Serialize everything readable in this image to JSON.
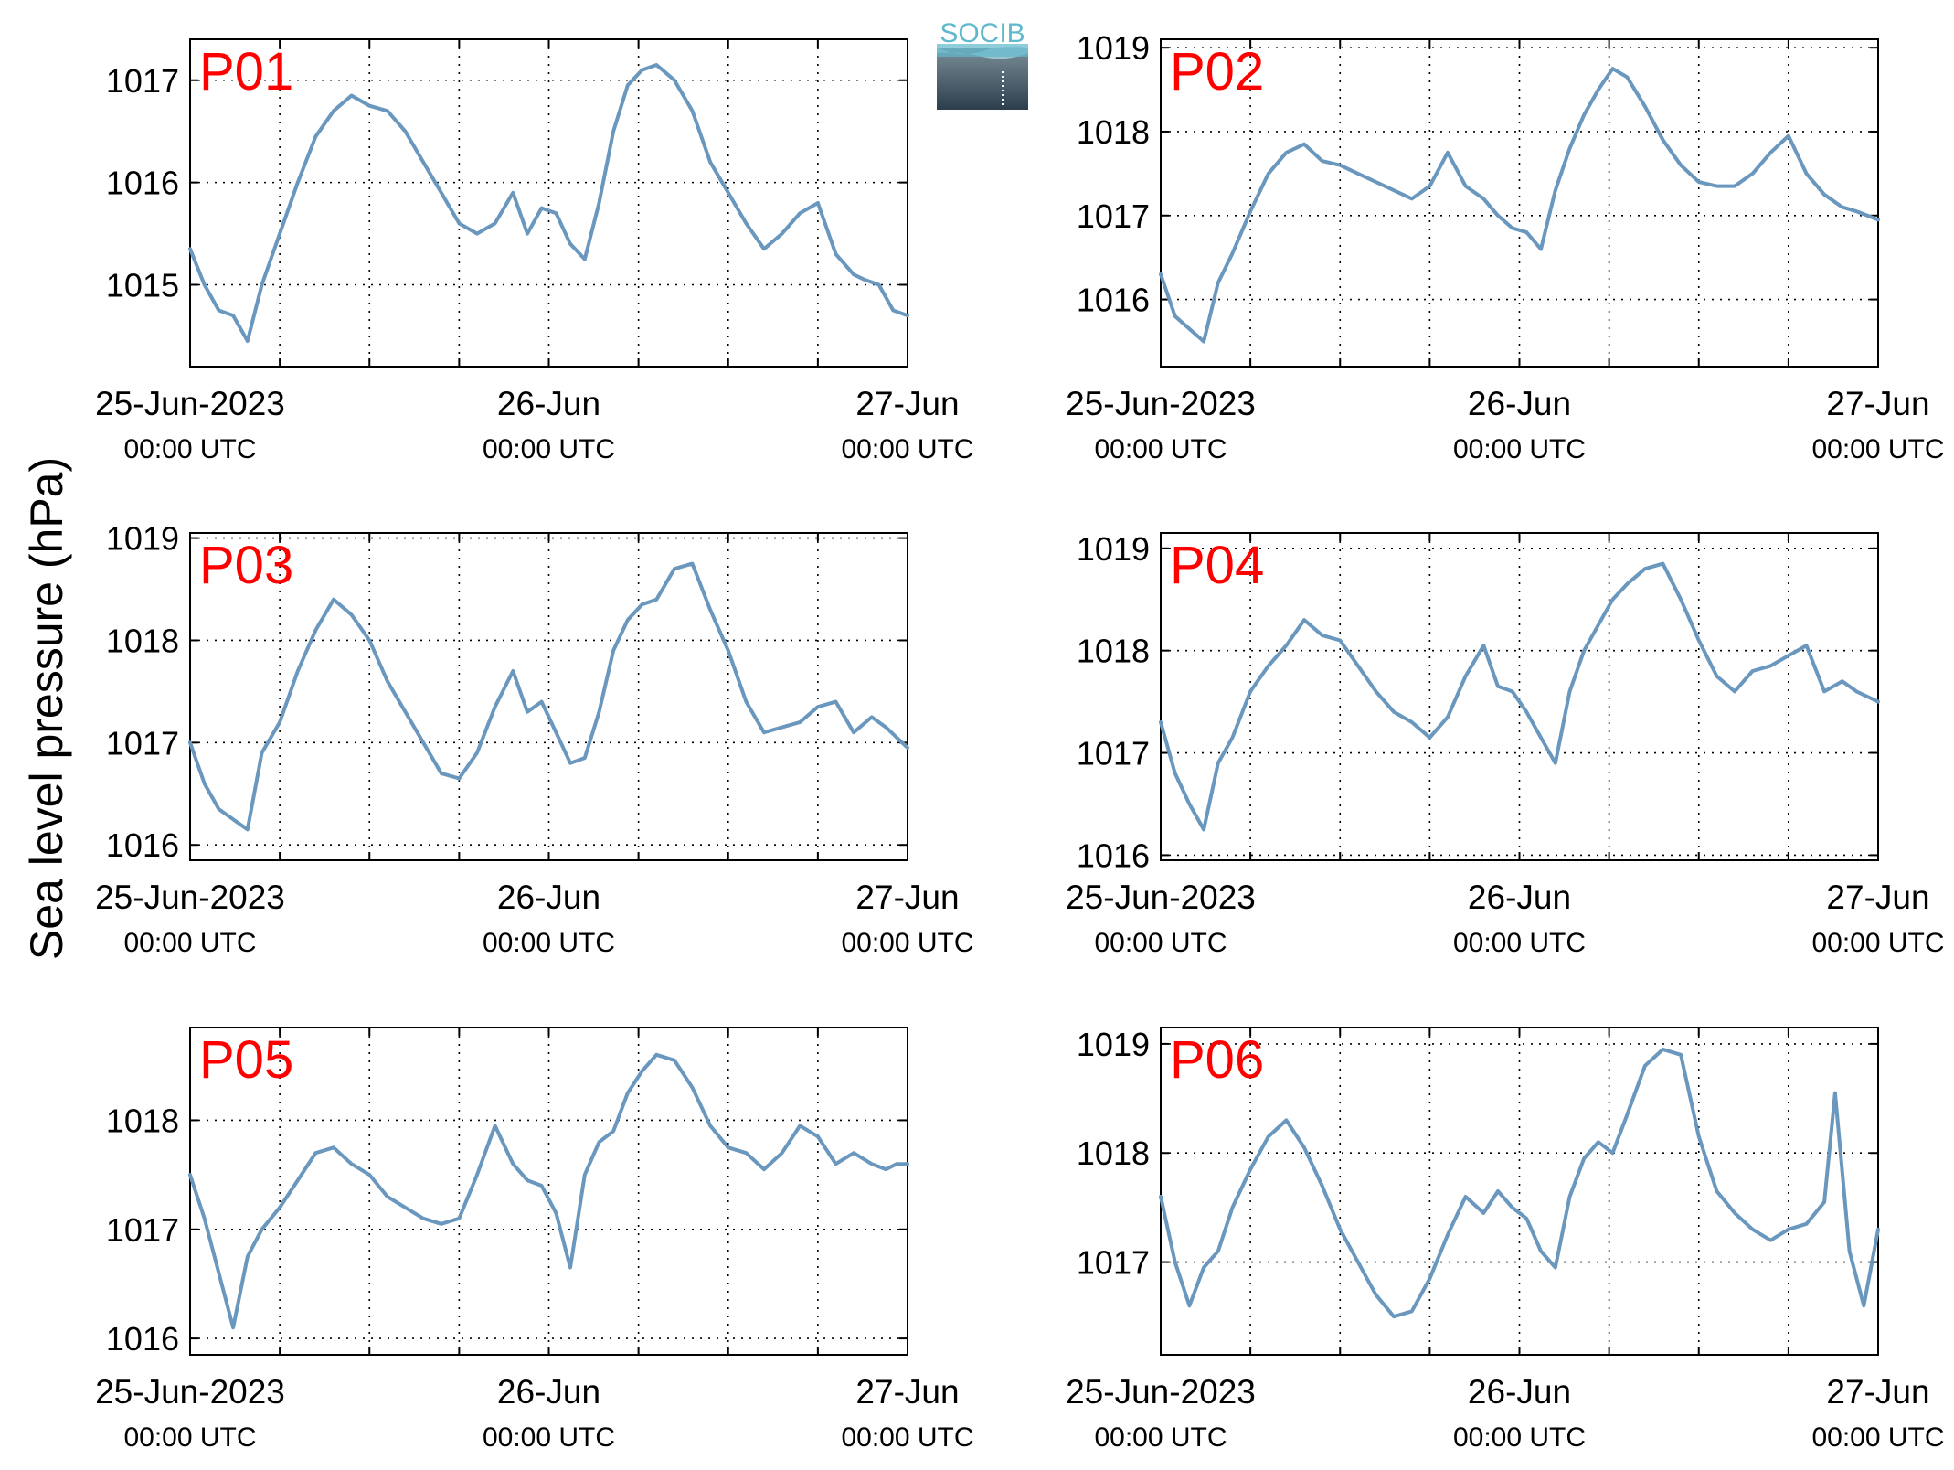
{
  "ylabel": "Sea level pressure (hPa)",
  "logo": {
    "text": "SOCIB"
  },
  "colors": {
    "line": "#6a97bd",
    "label": "#ff0000",
    "grid": "#000000",
    "logo_top": "#5fb8cc",
    "logo_bottom": "#2c3e4c"
  },
  "chart_data": [
    {
      "type": "line",
      "label": "P01",
      "ylim": [
        1014.2,
        1017.4
      ],
      "yticks": [
        1015,
        1016,
        1017
      ],
      "x": [
        0,
        0.04,
        0.08,
        0.12,
        0.16,
        0.2,
        0.25,
        0.3,
        0.35,
        0.4,
        0.45,
        0.5,
        0.55,
        0.6,
        0.65,
        0.7,
        0.75,
        0.8,
        0.85,
        0.9,
        0.94,
        0.98,
        1.02,
        1.06,
        1.1,
        1.14,
        1.18,
        1.22,
        1.26,
        1.3,
        1.35,
        1.4,
        1.45,
        1.5,
        1.55,
        1.6,
        1.65,
        1.7,
        1.75,
        1.8,
        1.85,
        1.88,
        1.92,
        1.96,
        2.0
      ],
      "y": [
        1015.35,
        1015.0,
        1014.75,
        1014.7,
        1014.45,
        1015.0,
        1015.5,
        1016.0,
        1016.45,
        1016.7,
        1016.85,
        1016.75,
        1016.7,
        1016.5,
        1016.2,
        1015.9,
        1015.6,
        1015.5,
        1015.6,
        1015.9,
        1015.5,
        1015.75,
        1015.7,
        1015.4,
        1015.25,
        1015.8,
        1016.5,
        1016.95,
        1017.1,
        1017.15,
        1017.0,
        1016.7,
        1016.2,
        1015.9,
        1015.6,
        1015.35,
        1015.5,
        1015.7,
        1015.8,
        1015.3,
        1015.1,
        1015.05,
        1015.0,
        1014.75,
        1014.7
      ]
    },
    {
      "type": "line",
      "label": "P02",
      "ylim": [
        1015.2,
        1019.1
      ],
      "yticks": [
        1016,
        1017,
        1018,
        1019
      ],
      "x": [
        0,
        0.04,
        0.08,
        0.12,
        0.16,
        0.2,
        0.25,
        0.3,
        0.35,
        0.4,
        0.45,
        0.5,
        0.55,
        0.6,
        0.65,
        0.7,
        0.75,
        0.8,
        0.85,
        0.9,
        0.94,
        0.98,
        1.02,
        1.06,
        1.1,
        1.14,
        1.18,
        1.22,
        1.26,
        1.3,
        1.35,
        1.4,
        1.45,
        1.5,
        1.55,
        1.6,
        1.65,
        1.7,
        1.75,
        1.8,
        1.85,
        1.9,
        1.94,
        1.97,
        2.0
      ],
      "y": [
        1016.3,
        1015.8,
        1015.65,
        1015.5,
        1016.2,
        1016.55,
        1017.05,
        1017.5,
        1017.75,
        1017.85,
        1017.65,
        1017.6,
        1017.5,
        1017.4,
        1017.3,
        1017.2,
        1017.35,
        1017.75,
        1017.35,
        1017.2,
        1017.0,
        1016.85,
        1016.8,
        1016.6,
        1017.3,
        1017.8,
        1018.2,
        1018.5,
        1018.75,
        1018.65,
        1018.3,
        1017.9,
        1017.6,
        1017.4,
        1017.35,
        1017.35,
        1017.5,
        1017.75,
        1017.95,
        1017.5,
        1017.25,
        1017.1,
        1017.05,
        1017.0,
        1016.95
      ]
    },
    {
      "type": "line",
      "label": "P03",
      "ylim": [
        1015.85,
        1019.05
      ],
      "yticks": [
        1016,
        1017,
        1018,
        1019
      ],
      "x": [
        0,
        0.04,
        0.08,
        0.12,
        0.16,
        0.2,
        0.25,
        0.3,
        0.35,
        0.4,
        0.45,
        0.5,
        0.55,
        0.6,
        0.65,
        0.7,
        0.75,
        0.8,
        0.85,
        0.9,
        0.94,
        0.98,
        1.02,
        1.06,
        1.1,
        1.14,
        1.18,
        1.22,
        1.26,
        1.3,
        1.35,
        1.4,
        1.45,
        1.5,
        1.55,
        1.6,
        1.65,
        1.7,
        1.75,
        1.8,
        1.85,
        1.9,
        1.94,
        1.97,
        2.0
      ],
      "y": [
        1017.0,
        1016.6,
        1016.35,
        1016.25,
        1016.15,
        1016.9,
        1017.2,
        1017.7,
        1018.1,
        1018.4,
        1018.25,
        1018.0,
        1017.6,
        1017.3,
        1017.0,
        1016.7,
        1016.65,
        1016.9,
        1017.35,
        1017.7,
        1017.3,
        1017.4,
        1017.1,
        1016.8,
        1016.85,
        1017.3,
        1017.9,
        1018.2,
        1018.35,
        1018.4,
        1018.7,
        1018.75,
        1018.3,
        1017.9,
        1017.4,
        1017.1,
        1017.15,
        1017.2,
        1017.35,
        1017.4,
        1017.1,
        1017.25,
        1017.15,
        1017.05,
        1016.95
      ]
    },
    {
      "type": "line",
      "label": "P04",
      "ylim": [
        1015.95,
        1019.15
      ],
      "yticks": [
        1016,
        1017,
        1018,
        1019
      ],
      "x": [
        0,
        0.04,
        0.08,
        0.12,
        0.16,
        0.2,
        0.25,
        0.3,
        0.35,
        0.4,
        0.45,
        0.5,
        0.55,
        0.6,
        0.65,
        0.7,
        0.75,
        0.8,
        0.85,
        0.9,
        0.94,
        0.98,
        1.02,
        1.06,
        1.1,
        1.14,
        1.18,
        1.22,
        1.26,
        1.3,
        1.35,
        1.4,
        1.45,
        1.5,
        1.55,
        1.6,
        1.65,
        1.7,
        1.75,
        1.8,
        1.85,
        1.9,
        1.94,
        1.97,
        2.0
      ],
      "y": [
        1017.3,
        1016.8,
        1016.5,
        1016.25,
        1016.9,
        1017.15,
        1017.6,
        1017.85,
        1018.05,
        1018.3,
        1018.15,
        1018.1,
        1017.85,
        1017.6,
        1017.4,
        1017.3,
        1017.15,
        1017.35,
        1017.75,
        1018.05,
        1017.65,
        1017.6,
        1017.4,
        1017.15,
        1016.9,
        1017.6,
        1018.0,
        1018.25,
        1018.5,
        1018.65,
        1018.8,
        1018.85,
        1018.5,
        1018.1,
        1017.75,
        1017.6,
        1017.8,
        1017.85,
        1017.95,
        1018.05,
        1017.6,
        1017.7,
        1017.6,
        1017.55,
        1017.5
      ]
    },
    {
      "type": "line",
      "label": "P05",
      "ylim": [
        1015.85,
        1018.85
      ],
      "yticks": [
        1016,
        1017,
        1018
      ],
      "x": [
        0,
        0.04,
        0.08,
        0.12,
        0.16,
        0.2,
        0.25,
        0.3,
        0.35,
        0.4,
        0.45,
        0.5,
        0.55,
        0.6,
        0.65,
        0.7,
        0.75,
        0.8,
        0.85,
        0.9,
        0.94,
        0.98,
        1.02,
        1.06,
        1.1,
        1.14,
        1.18,
        1.22,
        1.26,
        1.3,
        1.35,
        1.4,
        1.45,
        1.5,
        1.55,
        1.6,
        1.65,
        1.7,
        1.75,
        1.8,
        1.85,
        1.9,
        1.94,
        1.97,
        2.0
      ],
      "y": [
        1017.5,
        1017.1,
        1016.6,
        1016.1,
        1016.75,
        1017.0,
        1017.2,
        1017.45,
        1017.7,
        1017.75,
        1017.6,
        1017.5,
        1017.3,
        1017.2,
        1017.1,
        1017.05,
        1017.1,
        1017.5,
        1017.95,
        1017.6,
        1017.45,
        1017.4,
        1017.15,
        1016.65,
        1017.5,
        1017.8,
        1017.9,
        1018.25,
        1018.45,
        1018.6,
        1018.55,
        1018.3,
        1017.95,
        1017.75,
        1017.7,
        1017.55,
        1017.7,
        1017.95,
        1017.85,
        1017.6,
        1017.7,
        1017.6,
        1017.55,
        1017.6,
        1017.6
      ]
    },
    {
      "type": "line",
      "label": "P06",
      "ylim": [
        1016.15,
        1019.15
      ],
      "yticks": [
        1017,
        1018,
        1019
      ],
      "x": [
        0,
        0.04,
        0.08,
        0.12,
        0.16,
        0.2,
        0.25,
        0.3,
        0.35,
        0.4,
        0.45,
        0.5,
        0.55,
        0.6,
        0.65,
        0.7,
        0.75,
        0.8,
        0.85,
        0.9,
        0.94,
        0.98,
        1.02,
        1.06,
        1.1,
        1.14,
        1.18,
        1.22,
        1.26,
        1.3,
        1.35,
        1.4,
        1.45,
        1.5,
        1.55,
        1.6,
        1.65,
        1.7,
        1.75,
        1.8,
        1.85,
        1.88,
        1.92,
        1.96,
        2.0
      ],
      "y": [
        1017.6,
        1017.0,
        1016.6,
        1016.95,
        1017.1,
        1017.5,
        1017.85,
        1018.15,
        1018.3,
        1018.05,
        1017.7,
        1017.3,
        1017.0,
        1016.7,
        1016.5,
        1016.55,
        1016.85,
        1017.25,
        1017.6,
        1017.45,
        1017.65,
        1017.5,
        1017.4,
        1017.1,
        1016.95,
        1017.6,
        1017.95,
        1018.1,
        1018.0,
        1018.35,
        1018.8,
        1018.95,
        1018.9,
        1018.15,
        1017.65,
        1017.45,
        1017.3,
        1017.2,
        1017.3,
        1017.35,
        1017.55,
        1018.55,
        1017.1,
        1016.6,
        1017.3
      ]
    }
  ],
  "x_axis": {
    "ticks": [
      {
        "value": 0,
        "date": "25-Jun-2023",
        "time": "00:00 UTC"
      },
      {
        "value": 1,
        "date": "26-Jun",
        "time": "00:00 UTC"
      },
      {
        "value": 2,
        "date": "27-Jun",
        "time": "00:00 UTC"
      }
    ],
    "minor": [
      0.25,
      0.5,
      0.75,
      1.25,
      1.5,
      1.75
    ]
  }
}
